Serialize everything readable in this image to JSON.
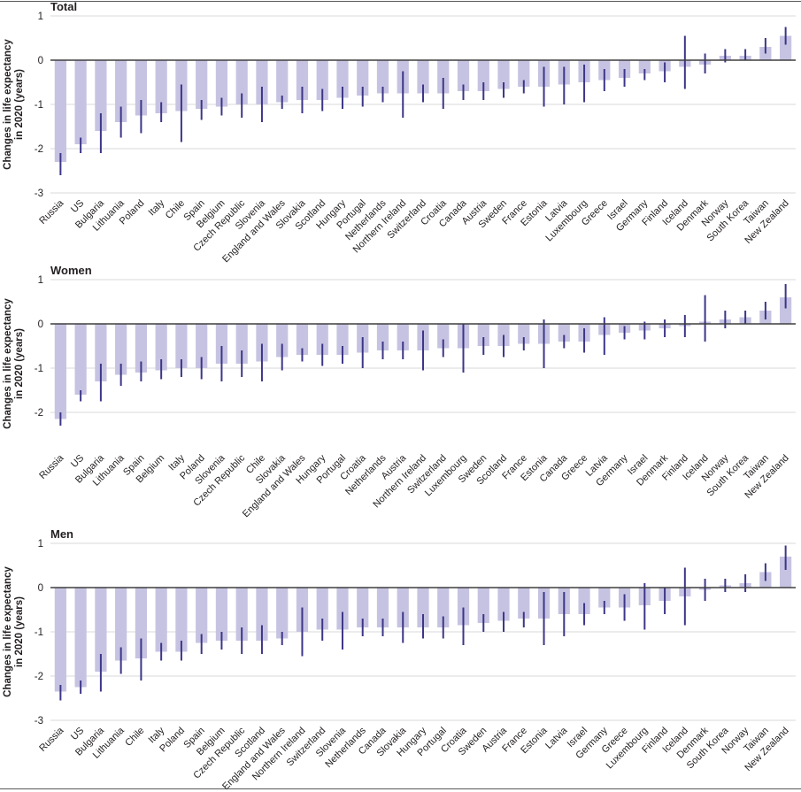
{
  "figure": {
    "ylabel_lines": [
      "Changes in life expectancy",
      "in 2020 (years)"
    ]
  },
  "colors": {
    "bar": "#c6c3e2",
    "error": "#3c3688",
    "grid": "#d9d9d9",
    "zero_line": "#3f3f3f",
    "text": "#231f20",
    "rule": "#57585a"
  },
  "chart_data": [
    {
      "type": "bar",
      "title": "Total",
      "ylabel": "Changes in life expectancy in 2020 (years)",
      "ylim": [
        -3,
        1
      ],
      "yticks": [
        1,
        0,
        -1,
        -2,
        -3
      ],
      "categories": [
        "Russia",
        "US",
        "Bulgaria",
        "Lithuania",
        "Poland",
        "Italy",
        "Chile",
        "Spain",
        "Belgium",
        "Czech Republic",
        "Slovenia",
        "England and Wales",
        "Slovakia",
        "Scotland",
        "Hungary",
        "Portugal",
        "Netherlands",
        "Northern Ireland",
        "Switzerland",
        "Croatia",
        "Canada",
        "Austria",
        "Sweden",
        "France",
        "Estonia",
        "Latvia",
        "Luxembourg",
        "Greece",
        "Israel",
        "Germany",
        "Finland",
        "Iceland",
        "Denmark",
        "Norway",
        "South Korea",
        "Taiwan",
        "New Zealand"
      ],
      "values": [
        -2.3,
        -1.9,
        -1.6,
        -1.4,
        -1.25,
        -1.2,
        -1.15,
        -1.1,
        -1.05,
        -1.0,
        -1.0,
        -0.95,
        -0.9,
        -0.9,
        -0.85,
        -0.8,
        -0.75,
        -0.75,
        -0.75,
        -0.75,
        -0.7,
        -0.7,
        -0.65,
        -0.6,
        -0.6,
        -0.55,
        -0.5,
        -0.45,
        -0.4,
        -0.3,
        -0.25,
        -0.15,
        -0.1,
        0.1,
        0.1,
        0.3,
        0.55
      ],
      "ci_low": [
        -2.6,
        -2.1,
        -2.1,
        -1.75,
        -1.65,
        -1.4,
        -1.85,
        -1.35,
        -1.25,
        -1.3,
        -1.4,
        -1.1,
        -1.2,
        -1.15,
        -1.1,
        -1.05,
        -0.95,
        -1.3,
        -0.95,
        -1.1,
        -0.9,
        -0.9,
        -0.85,
        -0.75,
        -1.05,
        -1.0,
        -0.95,
        -0.7,
        -0.6,
        -0.45,
        -0.5,
        -0.65,
        -0.3,
        -0.05,
        0.0,
        0.15,
        0.35
      ],
      "ci_high": [
        -2.1,
        -1.75,
        -1.2,
        -1.05,
        -0.9,
        -0.95,
        -0.55,
        -0.9,
        -0.85,
        -0.75,
        -0.6,
        -0.8,
        -0.6,
        -0.65,
        -0.6,
        -0.6,
        -0.6,
        -0.25,
        -0.55,
        -0.4,
        -0.55,
        -0.5,
        -0.5,
        -0.45,
        -0.15,
        -0.15,
        -0.1,
        -0.2,
        -0.2,
        -0.2,
        -0.05,
        0.55,
        0.15,
        0.25,
        0.25,
        0.5,
        0.75
      ]
    },
    {
      "type": "bar",
      "title": "Women",
      "ylabel": "Changes in life expectancy in 2020 (years)",
      "ylim": [
        -2.8,
        1
      ],
      "yticks": [
        1,
        0,
        -1,
        -2
      ],
      "categories": [
        "Russia",
        "US",
        "Bulgaria",
        "Lithuania",
        "Spain",
        "Belgium",
        "Italy",
        "Poland",
        "Slovenia",
        "Czech Republic",
        "Chile",
        "Slovakia",
        "England and Wales",
        "Hungary",
        "Portugal",
        "Croatia",
        "Netherlands",
        "Austria",
        "Northern Ireland",
        "Switzerland",
        "Luxembourg",
        "Sweden",
        "Scotland",
        "France",
        "Estonia",
        "Canada",
        "Greece",
        "Latvia",
        "Germany",
        "Israel",
        "Denmark",
        "Finland",
        "Iceland",
        "Norway",
        "South Korea",
        "Taiwan",
        "New Zealand"
      ],
      "values": [
        -2.15,
        -1.6,
        -1.3,
        -1.15,
        -1.1,
        -1.05,
        -1.0,
        -1.0,
        -0.9,
        -0.9,
        -0.85,
        -0.75,
        -0.7,
        -0.7,
        -0.7,
        -0.65,
        -0.6,
        -0.6,
        -0.6,
        -0.55,
        -0.55,
        -0.5,
        -0.5,
        -0.45,
        -0.45,
        -0.4,
        -0.4,
        -0.25,
        -0.2,
        -0.15,
        -0.1,
        -0.05,
        0.05,
        0.1,
        0.15,
        0.3,
        0.6
      ],
      "ci_low": [
        -2.3,
        -1.75,
        -1.75,
        -1.4,
        -1.3,
        -1.25,
        -1.2,
        -1.25,
        -1.3,
        -1.2,
        -1.3,
        -1.05,
        -0.85,
        -0.95,
        -0.9,
        -1.0,
        -0.8,
        -0.8,
        -1.05,
        -0.75,
        -1.1,
        -0.7,
        -0.75,
        -0.6,
        -1.0,
        -0.55,
        -0.65,
        -0.7,
        -0.35,
        -0.35,
        -0.3,
        -0.3,
        -0.4,
        -0.1,
        0.0,
        0.1,
        0.35
      ],
      "ci_high": [
        -2.0,
        -1.5,
        -0.9,
        -0.9,
        -0.85,
        -0.8,
        -0.8,
        -0.75,
        -0.5,
        -0.6,
        -0.45,
        -0.45,
        -0.55,
        -0.45,
        -0.5,
        -0.3,
        -0.4,
        -0.4,
        -0.15,
        -0.35,
        0.0,
        -0.3,
        -0.25,
        -0.3,
        0.1,
        -0.25,
        -0.1,
        0.15,
        -0.05,
        0.05,
        0.1,
        0.2,
        0.65,
        0.3,
        0.3,
        0.5,
        0.9
      ]
    },
    {
      "type": "bar",
      "title": "Men",
      "ylabel": "Changes in life expectancy in 2020 (years)",
      "ylim": [
        -3,
        1
      ],
      "yticks": [
        1,
        0,
        -1,
        -2,
        -3
      ],
      "categories": [
        "Russia",
        "US",
        "Bulgaria",
        "Lithuania",
        "Chile",
        "Italy",
        "Poland",
        "Spain",
        "Belgium",
        "Czech Republic",
        "Scotland",
        "England and Wales",
        "Northern Ireland",
        "Switzerland",
        "Slovenia",
        "Netherlands",
        "Canada",
        "Slovakia",
        "Hungary",
        "Portugal",
        "Croatia",
        "Sweden",
        "Austria",
        "France",
        "Estonia",
        "Latvia",
        "Israel",
        "Germany",
        "Greece",
        "Luxembourg",
        "Finland",
        "Iceland",
        "Denmark",
        "South Korea",
        "Norway",
        "Taiwan",
        "New Zealand"
      ],
      "values": [
        -2.35,
        -2.25,
        -1.9,
        -1.65,
        -1.6,
        -1.45,
        -1.45,
        -1.25,
        -1.2,
        -1.2,
        -1.2,
        -1.15,
        -1.0,
        -0.95,
        -0.95,
        -0.9,
        -0.9,
        -0.9,
        -0.9,
        -0.9,
        -0.85,
        -0.8,
        -0.75,
        -0.7,
        -0.7,
        -0.6,
        -0.6,
        -0.45,
        -0.45,
        -0.4,
        -0.3,
        -0.2,
        -0.05,
        0.05,
        0.1,
        0.35,
        0.7
      ],
      "ci_low": [
        -2.55,
        -2.4,
        -2.35,
        -1.95,
        -2.1,
        -1.65,
        -1.65,
        -1.5,
        -1.4,
        -1.5,
        -1.5,
        -1.3,
        -1.55,
        -1.2,
        -1.4,
        -1.1,
        -1.1,
        -1.25,
        -1.15,
        -1.15,
        -1.3,
        -1.0,
        -1.0,
        -0.9,
        -1.3,
        -1.1,
        -0.85,
        -0.6,
        -0.75,
        -0.95,
        -0.6,
        -0.85,
        -0.3,
        -0.1,
        -0.1,
        0.15,
        0.4
      ],
      "ci_high": [
        -2.2,
        -2.1,
        -1.5,
        -1.35,
        -1.15,
        -1.25,
        -1.2,
        -1.05,
        -1.0,
        -0.9,
        -0.85,
        -1.0,
        -0.45,
        -0.7,
        -0.55,
        -0.7,
        -0.7,
        -0.55,
        -0.6,
        -0.65,
        -0.45,
        -0.6,
        -0.55,
        -0.55,
        -0.1,
        -0.1,
        -0.35,
        -0.3,
        -0.15,
        0.1,
        0.0,
        0.45,
        0.2,
        0.2,
        0.3,
        0.55,
        0.95
      ]
    }
  ]
}
